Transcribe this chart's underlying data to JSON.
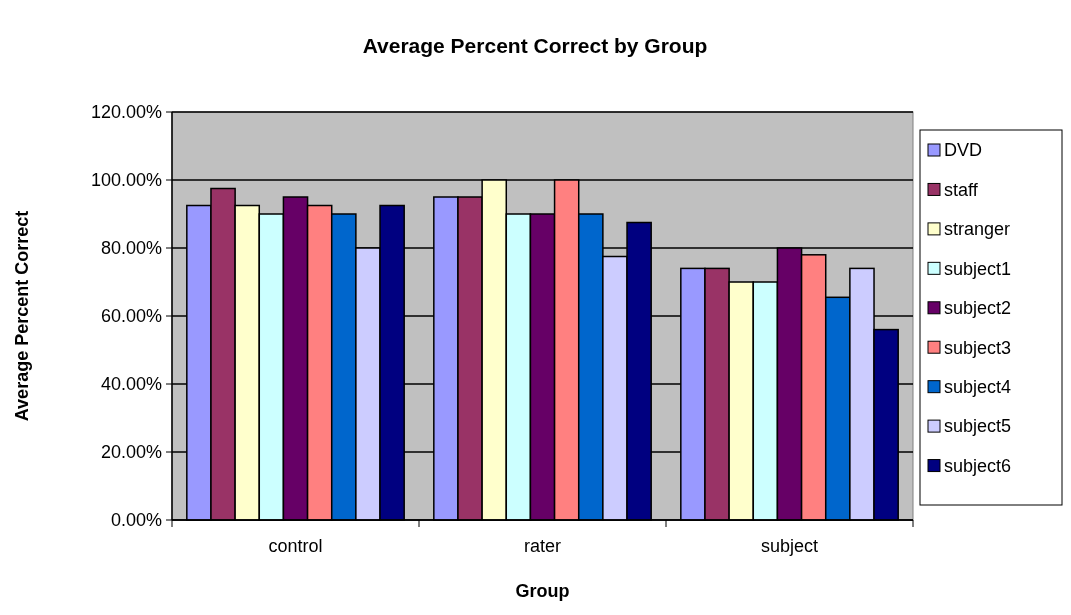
{
  "chart_data": {
    "type": "bar",
    "title": "Average Percent Correct by Group",
    "xlabel": "Group",
    "ylabel": "Average Percent Correct",
    "categories": [
      "control",
      "rater",
      "subject"
    ],
    "series": [
      {
        "name": "DVD",
        "color": "#9999ff",
        "values": [
          92.5,
          95,
          74
        ]
      },
      {
        "name": "staff",
        "color": "#993366",
        "values": [
          97.5,
          95,
          74
        ]
      },
      {
        "name": "stranger",
        "color": "#ffffcc",
        "values": [
          92.5,
          100,
          70
        ]
      },
      {
        "name": "subject1",
        "color": "#ccffff",
        "values": [
          90,
          90,
          70
        ]
      },
      {
        "name": "subject2",
        "color": "#660066",
        "values": [
          95,
          90,
          80
        ]
      },
      {
        "name": "subject3",
        "color": "#ff8080",
        "values": [
          92.5,
          100,
          78
        ]
      },
      {
        "name": "subject4",
        "color": "#0066cc",
        "values": [
          90,
          90,
          65.5
        ]
      },
      {
        "name": "subject5",
        "color": "#ccccff",
        "values": [
          80,
          77.5,
          74
        ]
      },
      {
        "name": "subject6",
        "color": "#000080",
        "values": [
          92.5,
          87.5,
          56
        ]
      }
    ],
    "ylim": [
      0,
      120
    ],
    "yticks": [
      {
        "value": 0,
        "label": "0.00%"
      },
      {
        "value": 20,
        "label": "20.00%"
      },
      {
        "value": 40,
        "label": "40.00%"
      },
      {
        "value": 60,
        "label": "60.00%"
      },
      {
        "value": 80,
        "label": "80.00%"
      },
      {
        "value": 100,
        "label": "100.00%"
      },
      {
        "value": 120,
        "label": "120.00%"
      }
    ],
    "grid": "y",
    "legend": "right"
  }
}
